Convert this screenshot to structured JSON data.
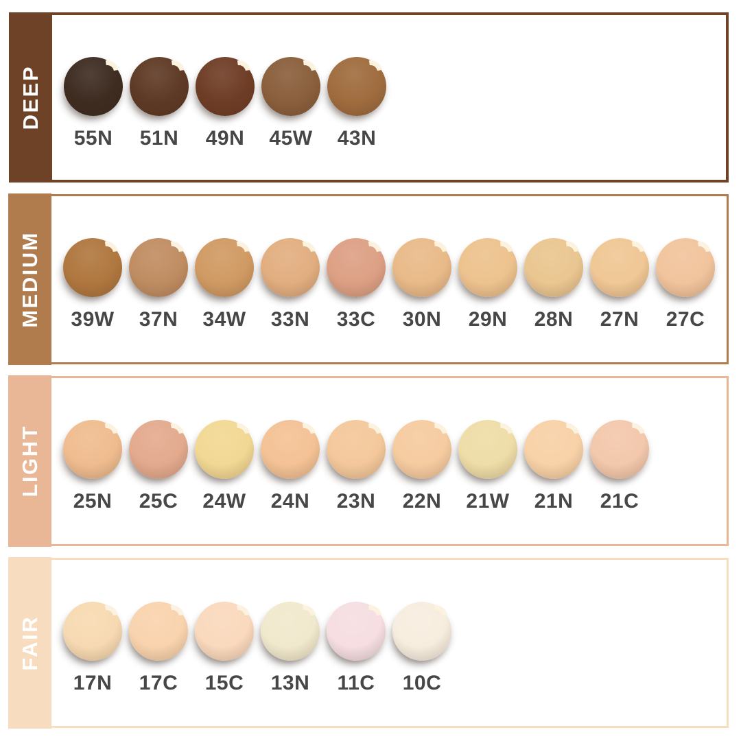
{
  "page": {
    "background": "#ffffff",
    "label_color": "#474747",
    "highlight_color": "#fbf2df"
  },
  "chart_data": {
    "type": "table",
    "categories": [
      "DEEP",
      "MEDIUM",
      "LIGHT",
      "FAIR"
    ],
    "rows": [
      {
        "label": "DEEP",
        "color": "#6d4227",
        "swatches": [
          {
            "code": "55N",
            "color": "#3e2c21"
          },
          {
            "code": "51N",
            "color": "#5e3a25"
          },
          {
            "code": "49N",
            "color": "#6f3d26"
          },
          {
            "code": "45W",
            "color": "#8a5f3c"
          },
          {
            "code": "43N",
            "color": "#9f6c3e"
          }
        ]
      },
      {
        "label": "MEDIUM",
        "color": "#b07c4e",
        "swatches": [
          {
            "code": "39W",
            "color": "#b0773f"
          },
          {
            "code": "37N",
            "color": "#c08d62"
          },
          {
            "code": "34W",
            "color": "#d09a63"
          },
          {
            "code": "33N",
            "color": "#e2ae80"
          },
          {
            "code": "33C",
            "color": "#dda085"
          },
          {
            "code": "30N",
            "color": "#e9ba89"
          },
          {
            "code": "29N",
            "color": "#edc28e"
          },
          {
            "code": "28N",
            "color": "#eac690"
          },
          {
            "code": "27N",
            "color": "#f0c795"
          },
          {
            "code": "27C",
            "color": "#f1c49c"
          }
        ]
      },
      {
        "label": "LIGHT",
        "color": "#e9b795",
        "swatches": [
          {
            "code": "25N",
            "color": "#efbc8f"
          },
          {
            "code": "25C",
            "color": "#e3aa8e"
          },
          {
            "code": "24W",
            "color": "#f2d894"
          },
          {
            "code": "24N",
            "color": "#f4c295"
          },
          {
            "code": "23N",
            "color": "#f4c89b"
          },
          {
            "code": "22N",
            "color": "#f6cba0"
          },
          {
            "code": "21W",
            "color": "#eedda7"
          },
          {
            "code": "21N",
            "color": "#f8d1a7"
          },
          {
            "code": "21C",
            "color": "#f3c8ac"
          }
        ]
      },
      {
        "label": "FAIR",
        "color": "#f7dcbf",
        "swatches": [
          {
            "code": "17N",
            "color": "#f7dab2"
          },
          {
            "code": "17C",
            "color": "#f9d3ae"
          },
          {
            "code": "15C",
            "color": "#fad9bd"
          },
          {
            "code": "13N",
            "color": "#f1e9cd"
          },
          {
            "code": "11C",
            "color": "#f6dee2"
          },
          {
            "code": "10C",
            "color": "#f7eddf"
          }
        ]
      }
    ]
  }
}
